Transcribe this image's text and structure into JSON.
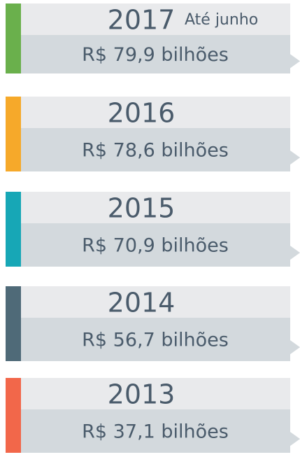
{
  "items": [
    {
      "year": "2017",
      "note": "Até junho",
      "amount": "R$ 79,9 bilhões",
      "color": "#6ab04c"
    },
    {
      "year": "2016",
      "amount": "R$ 78,6 bilhões",
      "color": "#f6a92a"
    },
    {
      "year": "2015",
      "amount": "R$ 70,9 bilhões",
      "color": "#17a7b6"
    },
    {
      "year": "2014",
      "amount": "R$ 56,7 bilhões",
      "color": "#4f6a78"
    },
    {
      "year": "2013",
      "amount": "R$ 37,1 bilhões",
      "color": "#f2674a"
    }
  ]
}
